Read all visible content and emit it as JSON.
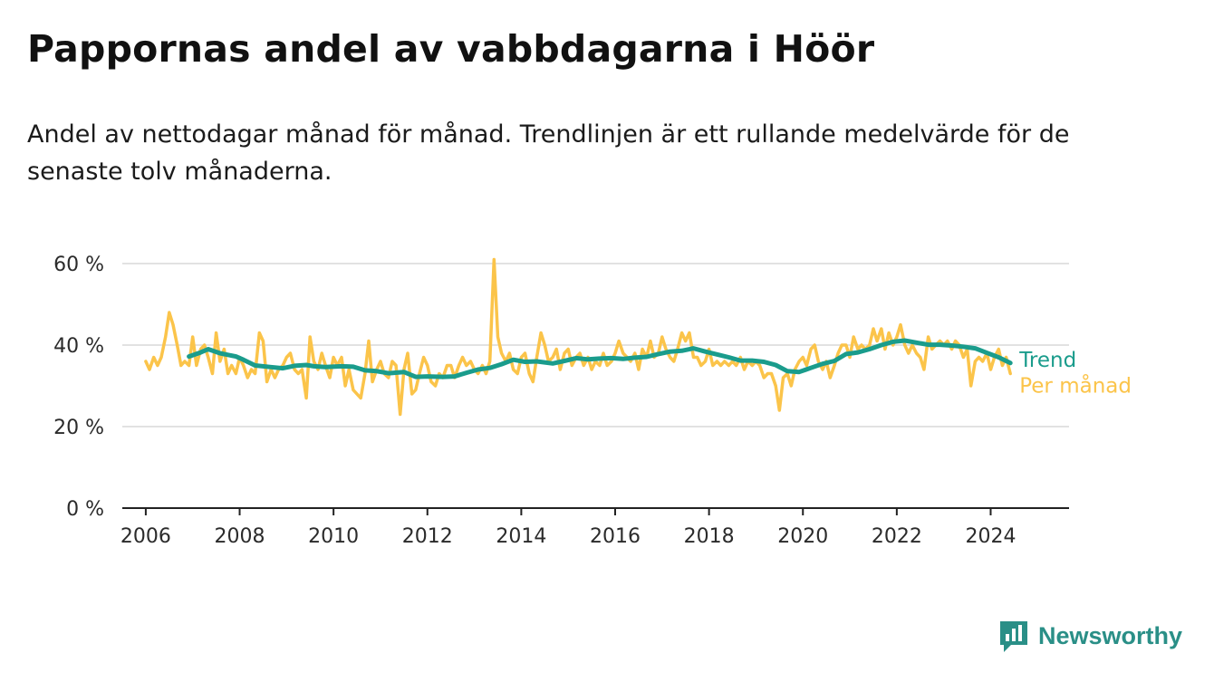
{
  "title": "Pappornas andel av vabbdagarna i Höör",
  "subtitle": "Andel av nettodagar månad för månad. Trendlinjen är ett rullande medelvärde för de senaste tolv månaderna.",
  "brand": {
    "name": "Newsworthy",
    "icon": "newsworthy-logo-icon",
    "color": "#2a8f87"
  },
  "chart_data": {
    "type": "line",
    "title": "Pappornas andel av vabbdagarna i Höör",
    "xlabel": "",
    "ylabel": "",
    "x_ticks": [
      "2006",
      "2008",
      "2010",
      "2012",
      "2014",
      "2016",
      "2018",
      "2020",
      "2022",
      "2024"
    ],
    "y_ticks": [
      "0 %",
      "20 %",
      "40 %",
      "60 %"
    ],
    "ylim": [
      0,
      60
    ],
    "grid": "horizontal",
    "legend": "labels at line ends, right",
    "series": [
      {
        "name": "Per månad",
        "color": "#fbc44a",
        "points": [
          [
            2006.0,
            36
          ],
          [
            2006.08,
            34
          ],
          [
            2006.17,
            37
          ],
          [
            2006.25,
            35
          ],
          [
            2006.33,
            37
          ],
          [
            2006.42,
            42
          ],
          [
            2006.5,
            48
          ],
          [
            2006.58,
            45
          ],
          [
            2006.67,
            40
          ],
          [
            2006.75,
            35
          ],
          [
            2006.83,
            36
          ],
          [
            2006.92,
            35
          ],
          [
            2007.0,
            42
          ],
          [
            2007.08,
            35
          ],
          [
            2007.17,
            39
          ],
          [
            2007.25,
            40
          ],
          [
            2007.33,
            37
          ],
          [
            2007.42,
            33
          ],
          [
            2007.5,
            43
          ],
          [
            2007.58,
            36
          ],
          [
            2007.67,
            39
          ],
          [
            2007.75,
            33
          ],
          [
            2007.83,
            35
          ],
          [
            2007.92,
            33
          ],
          [
            2008.0,
            37
          ],
          [
            2008.08,
            35
          ],
          [
            2008.17,
            32
          ],
          [
            2008.25,
            34
          ],
          [
            2008.33,
            33
          ],
          [
            2008.42,
            43
          ],
          [
            2008.5,
            41
          ],
          [
            2008.58,
            31
          ],
          [
            2008.67,
            34
          ],
          [
            2008.75,
            32
          ],
          [
            2008.83,
            34
          ],
          [
            2008.92,
            35
          ],
          [
            2009.0,
            37
          ],
          [
            2009.08,
            38
          ],
          [
            2009.17,
            34
          ],
          [
            2009.25,
            33
          ],
          [
            2009.33,
            34
          ],
          [
            2009.42,
            27
          ],
          [
            2009.5,
            42
          ],
          [
            2009.58,
            36
          ],
          [
            2009.67,
            34
          ],
          [
            2009.75,
            38
          ],
          [
            2009.83,
            35
          ],
          [
            2009.92,
            32
          ],
          [
            2010.0,
            37
          ],
          [
            2010.08,
            35
          ],
          [
            2010.17,
            37
          ],
          [
            2010.25,
            30
          ],
          [
            2010.33,
            34
          ],
          [
            2010.42,
            29
          ],
          [
            2010.5,
            28
          ],
          [
            2010.58,
            27
          ],
          [
            2010.67,
            33
          ],
          [
            2010.75,
            41
          ],
          [
            2010.83,
            31
          ],
          [
            2010.92,
            34
          ],
          [
            2011.0,
            36
          ],
          [
            2011.08,
            33
          ],
          [
            2011.17,
            32
          ],
          [
            2011.25,
            36
          ],
          [
            2011.33,
            35
          ],
          [
            2011.42,
            23
          ],
          [
            2011.5,
            34
          ],
          [
            2011.58,
            38
          ],
          [
            2011.67,
            28
          ],
          [
            2011.75,
            29
          ],
          [
            2011.83,
            33
          ],
          [
            2011.92,
            37
          ],
          [
            2012.0,
            35
          ],
          [
            2012.08,
            31
          ],
          [
            2012.17,
            30
          ],
          [
            2012.25,
            33
          ],
          [
            2012.33,
            32
          ],
          [
            2012.42,
            35
          ],
          [
            2012.5,
            35
          ],
          [
            2012.58,
            32
          ],
          [
            2012.67,
            35
          ],
          [
            2012.75,
            37
          ],
          [
            2012.83,
            35
          ],
          [
            2012.92,
            36
          ],
          [
            2013.0,
            34
          ],
          [
            2013.08,
            33
          ],
          [
            2013.17,
            35
          ],
          [
            2013.25,
            33
          ],
          [
            2013.33,
            36
          ],
          [
            2013.42,
            61
          ],
          [
            2013.5,
            42
          ],
          [
            2013.58,
            38
          ],
          [
            2013.67,
            36
          ],
          [
            2013.75,
            38
          ],
          [
            2013.83,
            34
          ],
          [
            2013.92,
            33
          ],
          [
            2014.0,
            37
          ],
          [
            2014.08,
            38
          ],
          [
            2014.17,
            33
          ],
          [
            2014.25,
            31
          ],
          [
            2014.33,
            37
          ],
          [
            2014.42,
            43
          ],
          [
            2014.5,
            40
          ],
          [
            2014.58,
            36
          ],
          [
            2014.67,
            37
          ],
          [
            2014.75,
            39
          ],
          [
            2014.83,
            34
          ],
          [
            2014.92,
            38
          ],
          [
            2015.0,
            39
          ],
          [
            2015.08,
            35
          ],
          [
            2015.17,
            37
          ],
          [
            2015.25,
            38
          ],
          [
            2015.33,
            35
          ],
          [
            2015.42,
            37
          ],
          [
            2015.5,
            34
          ],
          [
            2015.58,
            36
          ],
          [
            2015.67,
            35
          ],
          [
            2015.75,
            38
          ],
          [
            2015.83,
            35
          ],
          [
            2015.92,
            36
          ],
          [
            2016.0,
            38
          ],
          [
            2016.08,
            41
          ],
          [
            2016.17,
            38
          ],
          [
            2016.25,
            37
          ],
          [
            2016.33,
            36
          ],
          [
            2016.42,
            38
          ],
          [
            2016.5,
            34
          ],
          [
            2016.58,
            39
          ],
          [
            2016.67,
            37
          ],
          [
            2016.75,
            41
          ],
          [
            2016.83,
            37
          ],
          [
            2016.92,
            38
          ],
          [
            2017.0,
            42
          ],
          [
            2017.08,
            39
          ],
          [
            2017.17,
            37
          ],
          [
            2017.25,
            36
          ],
          [
            2017.33,
            39
          ],
          [
            2017.42,
            43
          ],
          [
            2017.5,
            41
          ],
          [
            2017.58,
            43
          ],
          [
            2017.67,
            37
          ],
          [
            2017.75,
            37
          ],
          [
            2017.83,
            35
          ],
          [
            2017.92,
            36
          ],
          [
            2018.0,
            39
          ],
          [
            2018.08,
            35
          ],
          [
            2018.17,
            36
          ],
          [
            2018.25,
            35
          ],
          [
            2018.33,
            36
          ],
          [
            2018.42,
            35
          ],
          [
            2018.5,
            36
          ],
          [
            2018.58,
            35
          ],
          [
            2018.67,
            37
          ],
          [
            2018.75,
            34
          ],
          [
            2018.83,
            36
          ],
          [
            2018.92,
            35
          ],
          [
            2019.0,
            36
          ],
          [
            2019.08,
            35
          ],
          [
            2019.17,
            32
          ],
          [
            2019.25,
            33
          ],
          [
            2019.33,
            33
          ],
          [
            2019.42,
            30
          ],
          [
            2019.5,
            24
          ],
          [
            2019.58,
            32
          ],
          [
            2019.67,
            33
          ],
          [
            2019.75,
            30
          ],
          [
            2019.83,
            34
          ],
          [
            2019.92,
            36
          ],
          [
            2020.0,
            37
          ],
          [
            2020.08,
            35
          ],
          [
            2020.17,
            39
          ],
          [
            2020.25,
            40
          ],
          [
            2020.33,
            36
          ],
          [
            2020.42,
            34
          ],
          [
            2020.5,
            36
          ],
          [
            2020.58,
            32
          ],
          [
            2020.67,
            35
          ],
          [
            2020.75,
            38
          ],
          [
            2020.83,
            40
          ],
          [
            2020.92,
            40
          ],
          [
            2021.0,
            37
          ],
          [
            2021.08,
            42
          ],
          [
            2021.17,
            39
          ],
          [
            2021.25,
            40
          ],
          [
            2021.33,
            39
          ],
          [
            2021.42,
            40
          ],
          [
            2021.5,
            44
          ],
          [
            2021.58,
            41
          ],
          [
            2021.67,
            44
          ],
          [
            2021.75,
            39
          ],
          [
            2021.83,
            43
          ],
          [
            2021.92,
            40
          ],
          [
            2022.0,
            42
          ],
          [
            2022.08,
            45
          ],
          [
            2022.17,
            40
          ],
          [
            2022.25,
            38
          ],
          [
            2022.33,
            40
          ],
          [
            2022.42,
            38
          ],
          [
            2022.5,
            37
          ],
          [
            2022.58,
            34
          ],
          [
            2022.67,
            42
          ],
          [
            2022.75,
            39
          ],
          [
            2022.83,
            40
          ],
          [
            2022.92,
            41
          ],
          [
            2023.0,
            40
          ],
          [
            2023.08,
            41
          ],
          [
            2023.17,
            39
          ],
          [
            2023.25,
            41
          ],
          [
            2023.33,
            40
          ],
          [
            2023.42,
            37
          ],
          [
            2023.5,
            39
          ],
          [
            2023.58,
            30
          ],
          [
            2023.67,
            36
          ],
          [
            2023.75,
            37
          ],
          [
            2023.83,
            36
          ],
          [
            2023.92,
            38
          ],
          [
            2024.0,
            34
          ],
          [
            2024.08,
            37
          ],
          [
            2024.17,
            39
          ],
          [
            2024.25,
            35
          ],
          [
            2024.33,
            37
          ],
          [
            2024.42,
            33
          ]
        ]
      },
      {
        "name": "Trend",
        "color": "#1a9c8c",
        "points": [
          [
            2006.92,
            37.2
          ],
          [
            2007.17,
            38.2
          ],
          [
            2007.33,
            39.0
          ],
          [
            2007.58,
            38.0
          ],
          [
            2007.92,
            37.2
          ],
          [
            2008.08,
            36.4
          ],
          [
            2008.33,
            35.0
          ],
          [
            2008.67,
            34.6
          ],
          [
            2008.92,
            34.3
          ],
          [
            2009.17,
            34.9
          ],
          [
            2009.42,
            35.1
          ],
          [
            2009.58,
            34.8
          ],
          [
            2009.83,
            34.6
          ],
          [
            2010.17,
            34.8
          ],
          [
            2010.42,
            34.7
          ],
          [
            2010.67,
            33.8
          ],
          [
            2010.92,
            33.6
          ],
          [
            2011.17,
            33.1
          ],
          [
            2011.5,
            33.4
          ],
          [
            2011.75,
            32.2
          ],
          [
            2012.0,
            32.3
          ],
          [
            2012.33,
            32.2
          ],
          [
            2012.58,
            32.3
          ],
          [
            2012.83,
            33.2
          ],
          [
            2013.08,
            34.0
          ],
          [
            2013.33,
            34.4
          ],
          [
            2013.58,
            35.3
          ],
          [
            2013.83,
            36.4
          ],
          [
            2014.08,
            35.9
          ],
          [
            2014.33,
            36.0
          ],
          [
            2014.67,
            35.5
          ],
          [
            2014.92,
            36.1
          ],
          [
            2015.17,
            36.8
          ],
          [
            2015.42,
            36.5
          ],
          [
            2015.67,
            36.7
          ],
          [
            2015.92,
            36.8
          ],
          [
            2016.17,
            36.6
          ],
          [
            2016.42,
            36.9
          ],
          [
            2016.67,
            37.1
          ],
          [
            2016.92,
            37.8
          ],
          [
            2017.17,
            38.4
          ],
          [
            2017.42,
            38.6
          ],
          [
            2017.67,
            39.2
          ],
          [
            2017.92,
            38.4
          ],
          [
            2018.17,
            37.7
          ],
          [
            2018.42,
            37.0
          ],
          [
            2018.67,
            36.2
          ],
          [
            2018.92,
            36.2
          ],
          [
            2019.17,
            35.9
          ],
          [
            2019.42,
            35.1
          ],
          [
            2019.67,
            33.6
          ],
          [
            2019.92,
            33.4
          ],
          [
            2020.17,
            34.4
          ],
          [
            2020.42,
            35.4
          ],
          [
            2020.67,
            36.1
          ],
          [
            2020.92,
            37.8
          ],
          [
            2021.17,
            38.2
          ],
          [
            2021.42,
            39.0
          ],
          [
            2021.67,
            40.0
          ],
          [
            2021.92,
            40.8
          ],
          [
            2022.17,
            41.1
          ],
          [
            2022.42,
            40.6
          ],
          [
            2022.67,
            40.1
          ],
          [
            2022.92,
            40.1
          ],
          [
            2023.17,
            39.9
          ],
          [
            2023.42,
            39.6
          ],
          [
            2023.67,
            39.2
          ],
          [
            2023.92,
            38.1
          ],
          [
            2024.17,
            37.0
          ],
          [
            2024.42,
            35.6
          ]
        ]
      }
    ]
  }
}
